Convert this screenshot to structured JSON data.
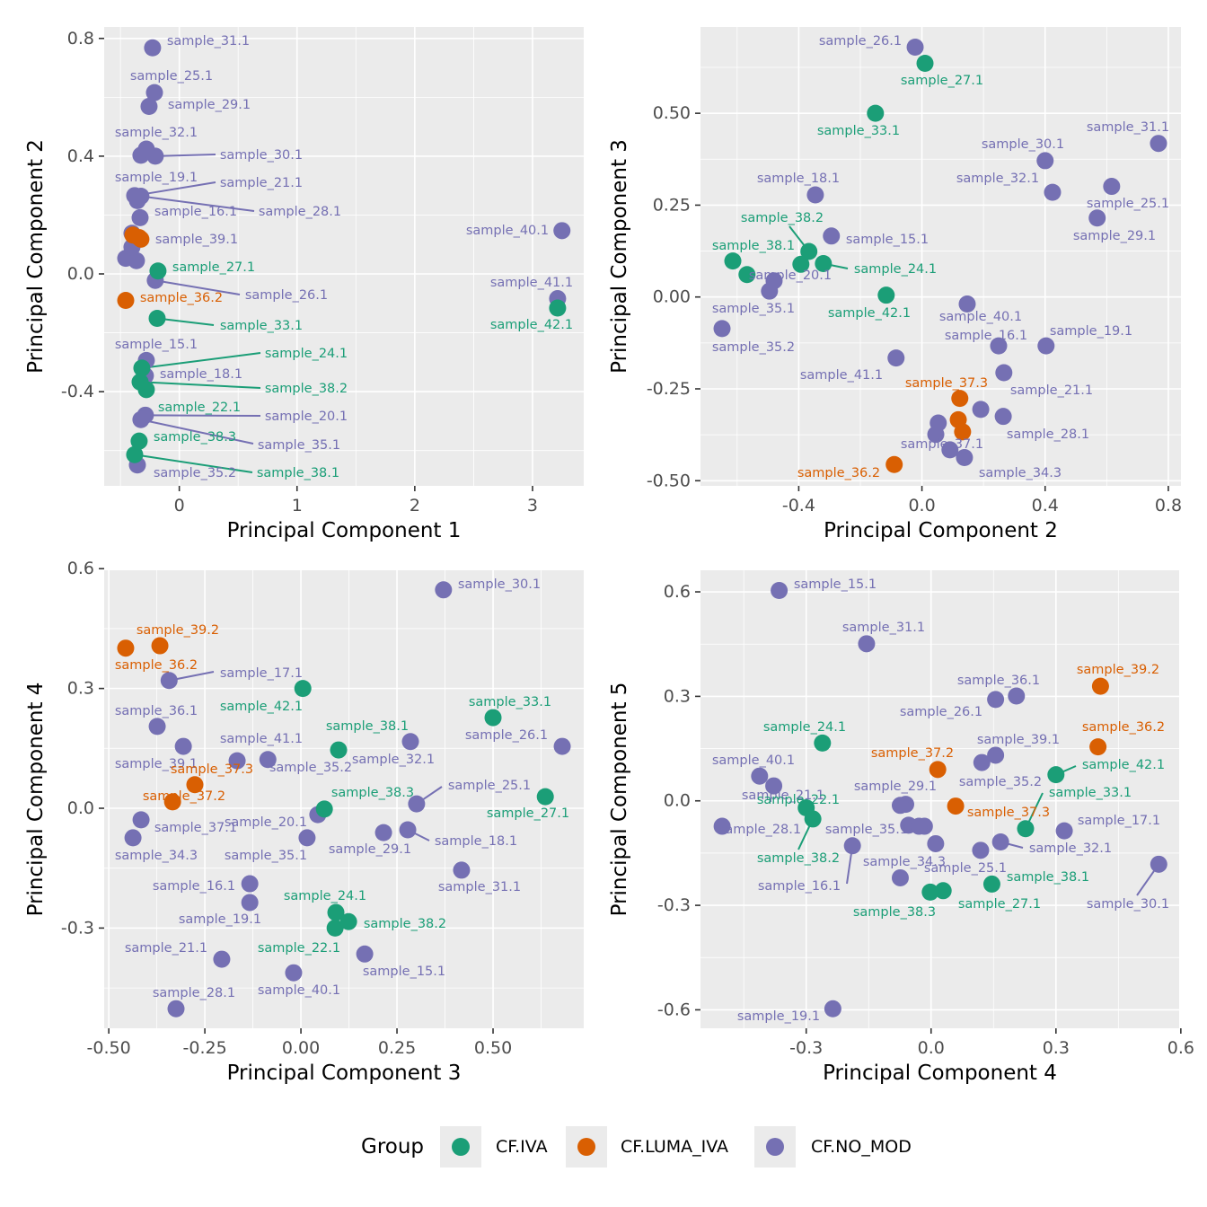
{
  "chart_data": {
    "type": "scatter",
    "grid": true,
    "legend": {
      "title": "Group",
      "position": "bottom",
      "entries": [
        {
          "name": "CF.IVA",
          "color": "#1B9E77"
        },
        {
          "name": "CF.LUMA_IVA",
          "color": "#D95F02"
        },
        {
          "name": "CF.NO_MOD",
          "color": "#7570B3"
        }
      ]
    },
    "samples": [
      {
        "name": "sample_15.1",
        "group": "CF.NO_MOD",
        "PC1": -0.28,
        "PC2": -0.294,
        "PC3": 0.166,
        "PC4": -0.365,
        "PC5": 0.604
      },
      {
        "name": "sample_16.1",
        "group": "CF.NO_MOD",
        "PC1": -0.356,
        "PC2": 0.249,
        "PC3": -0.133,
        "PC4": -0.189,
        "PC5": -0.129
      },
      {
        "name": "sample_17.1",
        "group": "CF.NO_MOD",
        "PC1": -0.455,
        "PC2": 0.053,
        "PC3": -0.343,
        "PC4": 0.32,
        "PC5": -0.086
      },
      {
        "name": "sample_18.1",
        "group": "CF.NO_MOD",
        "PC1": -0.288,
        "PC2": -0.346,
        "PC3": 0.278,
        "PC4": -0.054,
        "PC5": -0.07
      },
      {
        "name": "sample_19.1",
        "group": "CF.NO_MOD",
        "PC1": -0.326,
        "PC2": 0.403,
        "PC3": -0.133,
        "PC4": -0.236,
        "PC5": -0.597
      },
      {
        "name": "sample_20.1",
        "group": "CF.NO_MOD",
        "PC1": -0.288,
        "PC2": -0.48,
        "PC3": 0.044,
        "PC4": -0.016,
        "PC5": -0.073
      },
      {
        "name": "sample_21.1",
        "group": "CF.NO_MOD",
        "PC1": -0.379,
        "PC2": 0.266,
        "PC3": -0.206,
        "PC4": -0.378,
        "PC5": 0.043
      },
      {
        "name": "sample_22.1",
        "group": "CF.IVA",
        "PC1": -0.28,
        "PC2": -0.393,
        "PC3": 0.089,
        "PC4": -0.3,
        "PC5": -0.02
      },
      {
        "name": "sample_24.1",
        "group": "CF.IVA",
        "PC1": -0.318,
        "PC2": -0.32,
        "PC3": 0.091,
        "PC4": -0.261,
        "PC5": 0.166
      },
      {
        "name": "sample_25.1",
        "group": "CF.NO_MOD",
        "PC1": -0.211,
        "PC2": 0.616,
        "PC3": 0.301,
        "PC4": 0.011,
        "PC5": -0.123
      },
      {
        "name": "sample_26.1",
        "group": "CF.NO_MOD",
        "PC1": -0.204,
        "PC2": -0.022,
        "PC3": 0.68,
        "PC4": 0.155,
        "PC5": 0.291
      },
      {
        "name": "sample_27.1",
        "group": "CF.IVA",
        "PC1": -0.181,
        "PC2": 0.01,
        "PC3": 0.636,
        "PC4": 0.029,
        "PC5": -0.258
      },
      {
        "name": "sample_28.1",
        "group": "CF.NO_MOD",
        "PC1": -0.326,
        "PC2": 0.264,
        "PC3": -0.325,
        "PC4": -0.502,
        "PC5": -0.073
      },
      {
        "name": "sample_29.1",
        "group": "CF.NO_MOD",
        "PC1": -0.257,
        "PC2": 0.569,
        "PC3": 0.215,
        "PC4": -0.061,
        "PC5": -0.01
      },
      {
        "name": "sample_30.1",
        "group": "CF.NO_MOD",
        "PC1": -0.204,
        "PC2": 0.4,
        "PC3": 0.371,
        "PC4": 0.547,
        "PC5": -0.182
      },
      {
        "name": "sample_31.1",
        "group": "CF.NO_MOD",
        "PC1": -0.227,
        "PC2": 0.768,
        "PC3": 0.418,
        "PC4": -0.155,
        "PC5": 0.451
      },
      {
        "name": "sample_32.1",
        "group": "CF.NO_MOD",
        "PC1": -0.28,
        "PC2": 0.424,
        "PC3": 0.285,
        "PC4": 0.167,
        "PC5": -0.118
      },
      {
        "name": "sample_33.1",
        "group": "CF.IVA",
        "PC1": -0.188,
        "PC2": -0.151,
        "PC3": 0.5,
        "PC4": 0.227,
        "PC5": -0.08
      },
      {
        "name": "sample_34.3",
        "group": "CF.NO_MOD",
        "PC1": -0.402,
        "PC2": 0.138,
        "PC3": -0.437,
        "PC4": -0.074,
        "PC5": -0.221
      },
      {
        "name": "sample_35.1",
        "group": "CF.NO_MOD",
        "PC1": -0.326,
        "PC2": -0.495,
        "PC3": 0.016,
        "PC4": -0.074,
        "PC5": -0.013
      },
      {
        "name": "sample_35.2",
        "group": "CF.NO_MOD",
        "PC1": -0.356,
        "PC2": -0.649,
        "PC3": -0.086,
        "PC4": 0.122,
        "PC5": 0.11
      },
      {
        "name": "sample_36.1",
        "group": "CF.NO_MOD",
        "PC1": -0.364,
        "PC2": 0.045,
        "PC3": -0.374,
        "PC4": 0.205,
        "PC5": 0.301
      },
      {
        "name": "sample_36.2",
        "group": "CF.LUMA_IVA",
        "PC1": -0.455,
        "PC2": -0.09,
        "PC3": -0.456,
        "PC4": 0.401,
        "PC5": 0.155
      },
      {
        "name": "sample_37.1",
        "group": "CF.NO_MOD",
        "PC1": -0.402,
        "PC2": 0.091,
        "PC3": -0.416,
        "PC4": -0.029,
        "PC5": -0.073
      },
      {
        "name": "sample_37.2",
        "group": "CF.LUMA_IVA",
        "PC1": -0.326,
        "PC2": 0.118,
        "PC3": -0.334,
        "PC4": 0.016,
        "PC5": 0.09
      },
      {
        "name": "sample_37.3",
        "group": "CF.LUMA_IVA",
        "PC1": -0.34,
        "PC2": 0.123,
        "PC3": -0.276,
        "PC4": 0.059,
        "PC5": -0.015
      },
      {
        "name": "sample_38.1",
        "group": "CF.IVA",
        "PC1": -0.379,
        "PC2": -0.614,
        "PC3": 0.098,
        "PC4": 0.146,
        "PC5": -0.239
      },
      {
        "name": "sample_38.2",
        "group": "CF.IVA",
        "PC1": -0.333,
        "PC2": -0.367,
        "PC3": 0.124,
        "PC4": -0.284,
        "PC5": -0.052
      },
      {
        "name": "sample_38.3",
        "group": "CF.IVA",
        "PC1": -0.341,
        "PC2": -0.568,
        "PC3": 0.061,
        "PC4": -0.002,
        "PC5": -0.262
      },
      {
        "name": "sample_39.1",
        "group": "CF.NO_MOD",
        "PC1": -0.333,
        "PC2": 0.191,
        "PC3": -0.306,
        "PC4": 0.155,
        "PC5": 0.131
      },
      {
        "name": "sample_39.2",
        "group": "CF.LUMA_IVA",
        "PC1": -0.394,
        "PC2": 0.132,
        "PC3": -0.367,
        "PC4": 0.407,
        "PC5": 0.329
      },
      {
        "name": "sample_40.1",
        "group": "CF.NO_MOD",
        "PC1": 3.25,
        "PC2": 0.147,
        "PC3": -0.019,
        "PC4": -0.412,
        "PC5": 0.071
      },
      {
        "name": "sample_41.1",
        "group": "CF.NO_MOD",
        "PC1": 3.213,
        "PC2": -0.084,
        "PC3": -0.166,
        "PC4": 0.119,
        "PC5": -0.142
      },
      {
        "name": "sample_42.1",
        "group": "CF.IVA",
        "PC1": 3.213,
        "PC2": -0.116,
        "PC3": 0.005,
        "PC4": 0.3,
        "PC5": 0.075
      }
    ],
    "panels": [
      {
        "x": "PC1",
        "y": "PC2",
        "xlabel": "Principal Component 1",
        "ylabel": "Principal Component 2",
        "xlim": [
          -0.638,
          3.435
        ],
        "ylim": [
          -0.72,
          0.839
        ],
        "xticks": [
          0,
          1,
          2,
          3
        ],
        "xtick_labels": [
          "0",
          "1",
          "2",
          "3"
        ],
        "yticks": [
          -0.4,
          0,
          0.4,
          0.8
        ],
        "ytick_labels": [
          "-0.4",
          "0.0",
          "0.4",
          "0.8"
        ],
        "labeled": [
          "sample_31.1",
          "sample_25.1",
          "sample_29.1",
          "sample_32.1",
          "sample_30.1",
          "sample_19.1",
          "sample_21.1",
          "sample_16.1",
          "sample_28.1",
          "sample_39.1",
          "sample_27.1",
          "sample_26.1",
          "sample_36.2",
          "sample_33.1",
          "sample_15.1",
          "sample_24.1",
          "sample_18.1",
          "sample_38.2",
          "sample_22.1",
          "sample_20.1",
          "sample_38.3",
          "sample_35.1",
          "sample_35.2",
          "sample_38.1",
          "sample_40.1",
          "sample_41.1",
          "sample_42.1"
        ]
      },
      {
        "x": "PC2",
        "y": "PC3",
        "xlabel": "Principal Component 2",
        "ylabel": "Principal Component 3",
        "xlim": [
          -0.719,
          0.841
        ],
        "ylim": [
          -0.514,
          0.735
        ],
        "xticks": [
          -0.4,
          0,
          0.4,
          0.8
        ],
        "xtick_labels": [
          "-0.4",
          "0.0",
          "0.4",
          "0.8"
        ],
        "yticks": [
          -0.5,
          -0.25,
          0,
          0.25,
          0.5
        ],
        "ytick_labels": [
          "-0.50",
          "-0.25",
          "0.00",
          "0.25",
          "0.50"
        ],
        "labeled": [
          "sample_26.1",
          "sample_27.1",
          "sample_33.1",
          "sample_31.1",
          "sample_30.1",
          "sample_32.1",
          "sample_25.1",
          "sample_29.1",
          "sample_18.1",
          "sample_38.2",
          "sample_15.1",
          "sample_38.1",
          "sample_24.1",
          "sample_20.1",
          "sample_35.1",
          "sample_42.1",
          "sample_40.1",
          "sample_16.1",
          "sample_19.1",
          "sample_35.2",
          "sample_41.1",
          "sample_37.3",
          "sample_21.1",
          "sample_28.1",
          "sample_37.1",
          "sample_34.3",
          "sample_36.2"
        ]
      },
      {
        "x": "PC3",
        "y": "PC4",
        "xlabel": "Principal Component 3",
        "ylabel": "Principal Component 4",
        "xlim": [
          -0.512,
          0.736
        ],
        "ylim": [
          -0.551,
          0.596
        ],
        "xticks": [
          -0.5,
          -0.25,
          0,
          0.25,
          0.5
        ],
        "xtick_labels": [
          "-0.50",
          "-0.25",
          "0.00",
          "0.25",
          "0.50"
        ],
        "yticks": [
          -0.3,
          0,
          0.3,
          0.6
        ],
        "ytick_labels": [
          "-0.3",
          "0.0",
          "0.3",
          "0.6"
        ],
        "labeled": [
          "sample_30.1",
          "sample_39.2",
          "sample_36.2",
          "sample_17.1",
          "sample_42.1",
          "sample_33.1",
          "sample_36.1",
          "sample_38.1",
          "sample_26.1",
          "sample_41.1",
          "sample_32.1",
          "sample_39.1",
          "sample_35.2",
          "sample_37.3",
          "sample_25.1",
          "sample_38.3",
          "sample_37.2",
          "sample_27.1",
          "sample_20.1",
          "sample_37.1",
          "sample_29.1",
          "sample_18.1",
          "sample_34.3",
          "sample_35.1",
          "sample_31.1",
          "sample_16.1",
          "sample_24.1",
          "sample_19.1",
          "sample_38.2",
          "sample_21.1",
          "sample_22.1",
          "sample_15.1",
          "sample_40.1",
          "sample_28.1"
        ]
      },
      {
        "x": "PC4",
        "y": "PC5",
        "xlabel": "Principal Component 4",
        "ylabel": "Principal Component 5",
        "xlim": [
          -0.554,
          0.596
        ],
        "ylim": [
          -0.653,
          0.662
        ],
        "xticks": [
          -0.3,
          0,
          0.3,
          0.6
        ],
        "xtick_labels": [
          "-0.3",
          "0.0",
          "0.3",
          "0.6"
        ],
        "yticks": [
          -0.6,
          -0.3,
          0,
          0.3,
          0.6
        ],
        "ytick_labels": [
          "-0.6",
          "-0.3",
          "0.0",
          "0.3",
          "0.6"
        ],
        "labeled": [
          "sample_15.1",
          "sample_31.1",
          "sample_39.2",
          "sample_36.1",
          "sample_26.1",
          "sample_24.1",
          "sample_36.2",
          "sample_37.2",
          "sample_39.1",
          "sample_40.1",
          "sample_42.1",
          "sample_29.1",
          "sample_35.2",
          "sample_21.1",
          "sample_22.1",
          "sample_33.1",
          "sample_37.3",
          "sample_17.1",
          "sample_28.1",
          "sample_35.1",
          "sample_32.1",
          "sample_38.2",
          "sample_34.3",
          "sample_25.1",
          "sample_16.1",
          "sample_38.1",
          "sample_30.1",
          "sample_38.3",
          "sample_27.1",
          "sample_19.1"
        ]
      }
    ]
  }
}
